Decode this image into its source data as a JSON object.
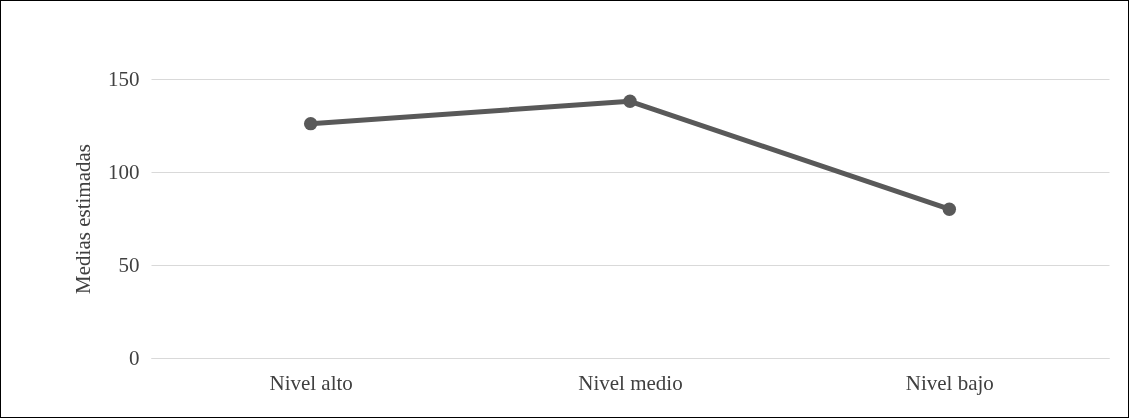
{
  "chart_data": {
    "type": "line",
    "ylabel": "Medias estimadas",
    "categories": [
      "Nivel alto",
      "Nivel medio",
      "Nivel bajo"
    ],
    "series": [
      {
        "color": "#595959",
        "values": [
          126,
          138,
          80
        ]
      }
    ],
    "ylim": [
      0,
      150
    ],
    "yticks": [
      0,
      50,
      100,
      150
    ],
    "grid": "y",
    "marker": "circle",
    "line_style": "solid",
    "legend": false
  }
}
